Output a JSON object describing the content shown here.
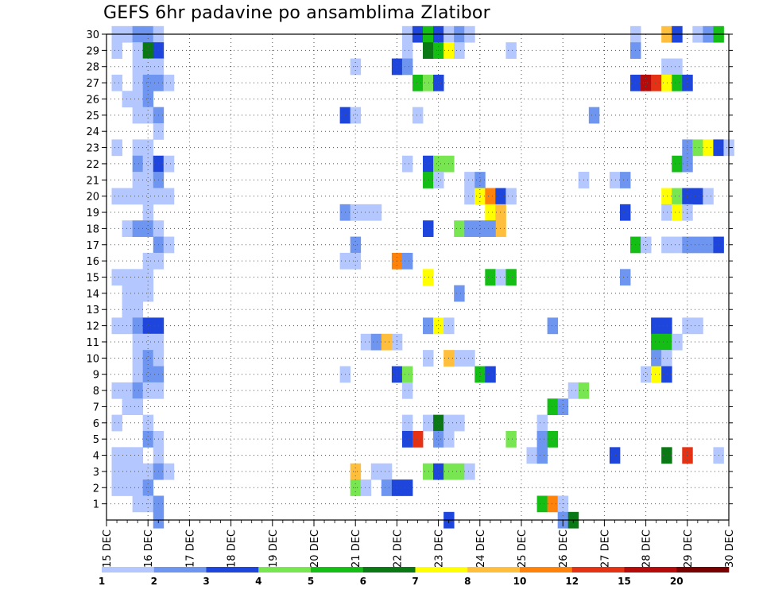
{
  "chart_data": {
    "type": "heatmap",
    "title": "GEFS 6hr padavine po ansamblima Zlatibor",
    "x_tick_labels": [
      "15 DEC",
      "16 DEC",
      "17 DEC",
      "18 DEC",
      "19 DEC",
      "20 DEC",
      "21 DEC",
      "22 DEC",
      "23 DEC",
      "24 DEC",
      "25 DEC",
      "26 DEC",
      "27 DEC",
      "28 DEC",
      "29 DEC",
      "30 DEC"
    ],
    "y_tick_labels": [
      "1",
      "2",
      "3",
      "4",
      "5",
      "6",
      "7",
      "8",
      "9",
      "10",
      "11",
      "12",
      "13",
      "14",
      "15",
      "16",
      "17",
      "18",
      "19",
      "20",
      "21",
      "22",
      "23",
      "24",
      "25",
      "26",
      "27",
      "28",
      "29",
      "30"
    ],
    "x_range_days": [
      0,
      15
    ],
    "y_range_members": [
      0,
      30
    ],
    "grid": true,
    "legend": {
      "position": "bottom",
      "labels": [
        "1",
        "2",
        "3",
        "4",
        "5",
        "6",
        "7",
        "8",
        "10",
        "12",
        "15",
        "20"
      ],
      "colors": [
        "#b4c8ff",
        "#6e96f0",
        "#1e46dc",
        "#78e650",
        "#14be14",
        "#0a7814",
        "#ffff00",
        "#ffbe3c",
        "#ff820a",
        "#e63214",
        "#b40a0a",
        "#780000"
      ]
    },
    "note": "values: precipitation class index 0..11 (1=1mm ... 11=>20mm). columns: [day_offset_from_15DEC, member, class]",
    "cells": [
      [
        0.25,
        30,
        0
      ],
      [
        0.5,
        30,
        0
      ],
      [
        0.75,
        30,
        1
      ],
      [
        1.0,
        30,
        1
      ],
      [
        1.25,
        30,
        0
      ],
      [
        0.25,
        29,
        0
      ],
      [
        0.75,
        29,
        0
      ],
      [
        1.0,
        29,
        5
      ],
      [
        1.25,
        29,
        2
      ],
      [
        0.75,
        28,
        0
      ],
      [
        1.0,
        28,
        0
      ],
      [
        1.25,
        28,
        0
      ],
      [
        0.25,
        27,
        0
      ],
      [
        0.75,
        27,
        0
      ],
      [
        1.0,
        27,
        1
      ],
      [
        1.25,
        27,
        1
      ],
      [
        1.5,
        27,
        0
      ],
      [
        0.5,
        26,
        0
      ],
      [
        0.75,
        26,
        0
      ],
      [
        1.0,
        26,
        1
      ],
      [
        0.75,
        25,
        0
      ],
      [
        1.0,
        25,
        0
      ],
      [
        1.25,
        25,
        1
      ],
      [
        1.25,
        24,
        0
      ],
      [
        0.25,
        23,
        0
      ],
      [
        0.75,
        23,
        0
      ],
      [
        1.0,
        23,
        0
      ],
      [
        0.75,
        22,
        1
      ],
      [
        1.0,
        22,
        0
      ],
      [
        1.25,
        22,
        2
      ],
      [
        1.5,
        22,
        0
      ],
      [
        0.75,
        21,
        0
      ],
      [
        1.0,
        21,
        0
      ],
      [
        1.25,
        21,
        1
      ],
      [
        0.25,
        20,
        0
      ],
      [
        0.5,
        20,
        0
      ],
      [
        0.75,
        20,
        0
      ],
      [
        1.0,
        20,
        0
      ],
      [
        1.25,
        20,
        0
      ],
      [
        1.5,
        20,
        0
      ],
      [
        1.0,
        19,
        0
      ],
      [
        0.5,
        18,
        0
      ],
      [
        0.75,
        18,
        1
      ],
      [
        1.0,
        18,
        1
      ],
      [
        1.25,
        18,
        0
      ],
      [
        1.25,
        17,
        1
      ],
      [
        1.5,
        17,
        0
      ],
      [
        1.0,
        16,
        0
      ],
      [
        1.25,
        16,
        0
      ],
      [
        0.25,
        15,
        0
      ],
      [
        0.5,
        15,
        0
      ],
      [
        0.75,
        15,
        0
      ],
      [
        1.0,
        15,
        0
      ],
      [
        0.5,
        14,
        0
      ],
      [
        0.75,
        14,
        0
      ],
      [
        1.0,
        14,
        0
      ],
      [
        0.5,
        13,
        0
      ],
      [
        0.75,
        13,
        0
      ],
      [
        0.25,
        12,
        0
      ],
      [
        0.5,
        12,
        0
      ],
      [
        0.75,
        12,
        1
      ],
      [
        1.0,
        12,
        2
      ],
      [
        1.25,
        12,
        2
      ],
      [
        0.75,
        11,
        0
      ],
      [
        1.0,
        11,
        0
      ],
      [
        1.25,
        11,
        0
      ],
      [
        0.75,
        10,
        0
      ],
      [
        1.0,
        10,
        1
      ],
      [
        1.25,
        10,
        0
      ],
      [
        0.75,
        9,
        0
      ],
      [
        1.0,
        9,
        1
      ],
      [
        1.25,
        9,
        1
      ],
      [
        0.25,
        8,
        0
      ],
      [
        0.5,
        8,
        0
      ],
      [
        0.75,
        8,
        1
      ],
      [
        1.0,
        8,
        0
      ],
      [
        1.25,
        8,
        0
      ],
      [
        0.5,
        7,
        0
      ],
      [
        0.75,
        7,
        0
      ],
      [
        0.25,
        6,
        0
      ],
      [
        1.0,
        6,
        0
      ],
      [
        1.0,
        5,
        1
      ],
      [
        1.25,
        5,
        0
      ],
      [
        0.25,
        4,
        0
      ],
      [
        0.5,
        4,
        0
      ],
      [
        0.75,
        4,
        0
      ],
      [
        1.25,
        4,
        0
      ],
      [
        0.25,
        3,
        0
      ],
      [
        0.5,
        3,
        0
      ],
      [
        0.75,
        3,
        0
      ],
      [
        1.0,
        3,
        0
      ],
      [
        1.25,
        3,
        1
      ],
      [
        1.5,
        3,
        0
      ],
      [
        0.25,
        2,
        0
      ],
      [
        0.5,
        2,
        0
      ],
      [
        0.75,
        2,
        0
      ],
      [
        1.0,
        2,
        1
      ],
      [
        0.75,
        1,
        0
      ],
      [
        1.0,
        1,
        0
      ],
      [
        1.25,
        1,
        1
      ],
      [
        1.25,
        0,
        1
      ],
      [
        7.25,
        30,
        0
      ],
      [
        7.5,
        30,
        2
      ],
      [
        7.75,
        30,
        4
      ],
      [
        8.0,
        30,
        2
      ],
      [
        8.25,
        30,
        0
      ],
      [
        8.5,
        30,
        1
      ],
      [
        8.75,
        30,
        0
      ],
      [
        7.25,
        29,
        0
      ],
      [
        7.75,
        29,
        5
      ],
      [
        8.0,
        29,
        4
      ],
      [
        8.25,
        29,
        6
      ],
      [
        8.5,
        29,
        0
      ],
      [
        9.75,
        29,
        0
      ],
      [
        7.0,
        28,
        2
      ],
      [
        7.25,
        28,
        1
      ],
      [
        7.5,
        27,
        4
      ],
      [
        7.75,
        27,
        3
      ],
      [
        8.0,
        27,
        2
      ],
      [
        7.5,
        25,
        0
      ],
      [
        7.25,
        22,
        0
      ],
      [
        7.75,
        22,
        2
      ],
      [
        8.0,
        22,
        3
      ],
      [
        8.25,
        22,
        3
      ],
      [
        7.75,
        21,
        4
      ],
      [
        8.0,
        21,
        0
      ],
      [
        8.75,
        21,
        0
      ],
      [
        9.0,
        21,
        1
      ],
      [
        8.75,
        20,
        0
      ],
      [
        9.0,
        20,
        6
      ],
      [
        9.25,
        20,
        8
      ],
      [
        9.5,
        20,
        2
      ],
      [
        9.75,
        20,
        0
      ],
      [
        9.25,
        19,
        6
      ],
      [
        9.5,
        19,
        7
      ],
      [
        9.5,
        18,
        7
      ],
      [
        7.75,
        18,
        2
      ],
      [
        8.5,
        18,
        3
      ],
      [
        8.75,
        18,
        1
      ],
      [
        9.0,
        18,
        1
      ],
      [
        9.25,
        18,
        1
      ],
      [
        7.0,
        16,
        8
      ],
      [
        7.25,
        16,
        1
      ],
      [
        7.75,
        15,
        6
      ],
      [
        9.25,
        15,
        4
      ],
      [
        9.5,
        15,
        0
      ],
      [
        9.75,
        15,
        4
      ],
      [
        8.5,
        14,
        1
      ],
      [
        7.75,
        12,
        1
      ],
      [
        8.0,
        12,
        6
      ],
      [
        8.25,
        12,
        0
      ],
      [
        7.75,
        10,
        0
      ],
      [
        8.25,
        10,
        7
      ],
      [
        8.5,
        10,
        0
      ],
      [
        8.75,
        10,
        0
      ],
      [
        7.0,
        9,
        2
      ],
      [
        7.25,
        9,
        3
      ],
      [
        9.0,
        9,
        4
      ],
      [
        9.25,
        9,
        2
      ],
      [
        7.25,
        8,
        0
      ],
      [
        7.25,
        6,
        0
      ],
      [
        7.75,
        6,
        0
      ],
      [
        8.0,
        6,
        5
      ],
      [
        8.25,
        6,
        0
      ],
      [
        8.5,
        6,
        0
      ],
      [
        7.25,
        5,
        2
      ],
      [
        7.5,
        5,
        9
      ],
      [
        8.0,
        5,
        1
      ],
      [
        8.25,
        5,
        0
      ],
      [
        9.75,
        5,
        3
      ],
      [
        7.75,
        3,
        3
      ],
      [
        8.0,
        3,
        2
      ],
      [
        8.25,
        3,
        3
      ],
      [
        8.5,
        3,
        3
      ],
      [
        8.75,
        3,
        0
      ],
      [
        8.25,
        0,
        2
      ],
      [
        6.0,
        28,
        0
      ],
      [
        5.75,
        25,
        2
      ],
      [
        6.0,
        25,
        0
      ],
      [
        5.75,
        19,
        1
      ],
      [
        6.0,
        19,
        0
      ],
      [
        6.25,
        19,
        0
      ],
      [
        6.5,
        19,
        0
      ],
      [
        6.0,
        17,
        1
      ],
      [
        5.75,
        16,
        0
      ],
      [
        6.0,
        16,
        0
      ],
      [
        6.25,
        11,
        0
      ],
      [
        6.5,
        11,
        1
      ],
      [
        6.75,
        11,
        7
      ],
      [
        7.0,
        11,
        0
      ],
      [
        5.75,
        9,
        0
      ],
      [
        6.0,
        3,
        7
      ],
      [
        6.5,
        3,
        0
      ],
      [
        6.75,
        3,
        0
      ],
      [
        6.0,
        2,
        3
      ],
      [
        6.25,
        2,
        0
      ],
      [
        6.75,
        2,
        1
      ],
      [
        7.0,
        2,
        2
      ],
      [
        7.25,
        2,
        2
      ],
      [
        10.5,
        6,
        0
      ],
      [
        10.75,
        7,
        4
      ],
      [
        11.0,
        7,
        1
      ],
      [
        11.25,
        8,
        0
      ],
      [
        11.5,
        8,
        3
      ],
      [
        10.5,
        5,
        1
      ],
      [
        10.75,
        5,
        4
      ],
      [
        10.25,
        4,
        0
      ],
      [
        10.5,
        4,
        1
      ],
      [
        10.5,
        1,
        4
      ],
      [
        10.75,
        1,
        8
      ],
      [
        11.0,
        1,
        0
      ],
      [
        11.0,
        0,
        1
      ],
      [
        11.25,
        0,
        5
      ],
      [
        10.75,
        12,
        1
      ],
      [
        11.5,
        21,
        0
      ],
      [
        11.75,
        25,
        1
      ],
      [
        11.5,
        21,
        0
      ],
      [
        12.75,
        30,
        0
      ],
      [
        13.5,
        30,
        7
      ],
      [
        13.75,
        30,
        2
      ],
      [
        14.25,
        30,
        0
      ],
      [
        14.5,
        30,
        1
      ],
      [
        14.75,
        30,
        4
      ],
      [
        12.75,
        29,
        1
      ],
      [
        13.5,
        28,
        0
      ],
      [
        13.75,
        28,
        0
      ],
      [
        12.75,
        27,
        2
      ],
      [
        13.0,
        27,
        10
      ],
      [
        13.25,
        27,
        9
      ],
      [
        13.5,
        27,
        6
      ],
      [
        13.75,
        27,
        4
      ],
      [
        14.0,
        27,
        2
      ],
      [
        14.0,
        23,
        1
      ],
      [
        14.25,
        23,
        3
      ],
      [
        14.5,
        23,
        6
      ],
      [
        14.75,
        23,
        2
      ],
      [
        15.0,
        23,
        0
      ],
      [
        13.75,
        22,
        4
      ],
      [
        14.0,
        22,
        1
      ],
      [
        12.25,
        21,
        0
      ],
      [
        12.5,
        21,
        1
      ],
      [
        13.5,
        20,
        6
      ],
      [
        13.75,
        20,
        3
      ],
      [
        14.0,
        20,
        2
      ],
      [
        14.25,
        20,
        2
      ],
      [
        14.5,
        20,
        0
      ],
      [
        12.5,
        19,
        2
      ],
      [
        13.5,
        19,
        0
      ],
      [
        13.75,
        19,
        6
      ],
      [
        14.0,
        19,
        0
      ],
      [
        12.75,
        17,
        4
      ],
      [
        13.0,
        17,
        0
      ],
      [
        13.5,
        17,
        0
      ],
      [
        13.75,
        17,
        0
      ],
      [
        14.0,
        17,
        1
      ],
      [
        14.25,
        17,
        1
      ],
      [
        14.5,
        17,
        1
      ],
      [
        14.75,
        17,
        2
      ],
      [
        12.5,
        15,
        1
      ],
      [
        13.25,
        12,
        2
      ],
      [
        13.5,
        12,
        2
      ],
      [
        14.0,
        12,
        0
      ],
      [
        14.25,
        12,
        0
      ],
      [
        13.25,
        11,
        4
      ],
      [
        13.5,
        11,
        4
      ],
      [
        13.75,
        11,
        0
      ],
      [
        13.25,
        10,
        1
      ],
      [
        13.5,
        10,
        0
      ],
      [
        13.0,
        9,
        0
      ],
      [
        13.25,
        9,
        6
      ],
      [
        13.5,
        9,
        2
      ],
      [
        12.25,
        4,
        2
      ],
      [
        13.5,
        4,
        5
      ],
      [
        14.0,
        4,
        9
      ],
      [
        14.75,
        4,
        0
      ]
    ]
  }
}
